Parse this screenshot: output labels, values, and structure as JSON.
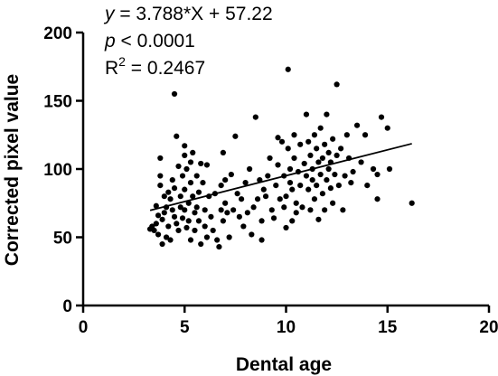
{
  "chart_data": {
    "type": "scatter",
    "xlabel": "Dental age",
    "ylabel": "Corrected pixel value",
    "xlim": [
      0,
      20
    ],
    "ylim": [
      0,
      200
    ],
    "x_ticks": [
      "0",
      "5",
      "10",
      "15",
      "20"
    ],
    "y_ticks": [
      "0",
      "50",
      "100",
      "150",
      "200"
    ],
    "grid": false,
    "colors": {
      "points": "#000000",
      "axes": "#000000",
      "fit_line": "#000000"
    },
    "fit": {
      "slope": 3.788,
      "intercept": 57.22,
      "x_range": [
        3.3,
        16.2
      ]
    },
    "annotations": {
      "line1_var": "y",
      "line1_rest": " =  3.788*X + 57.22",
      "line2_var": "p",
      "line2_rest": " < 0.0001",
      "line3_base": "R",
      "line3_sup": "2",
      "line3_rest": " = 0.2467"
    },
    "points": [
      [
        3.3,
        56
      ],
      [
        3.4,
        58
      ],
      [
        3.5,
        55
      ],
      [
        3.6,
        60
      ],
      [
        3.6,
        73
      ],
      [
        3.7,
        66
      ],
      [
        3.7,
        52
      ],
      [
        3.8,
        108
      ],
      [
        3.8,
        95
      ],
      [
        3.8,
        88
      ],
      [
        3.9,
        63
      ],
      [
        3.9,
        45
      ],
      [
        4.0,
        80
      ],
      [
        4.0,
        68
      ],
      [
        4.1,
        50
      ],
      [
        4.1,
        72
      ],
      [
        4.2,
        83
      ],
      [
        4.2,
        58
      ],
      [
        4.3,
        48
      ],
      [
        4.3,
        78
      ],
      [
        4.4,
        70
      ],
      [
        4.4,
        92
      ],
      [
        4.5,
        86
      ],
      [
        4.5,
        155
      ],
      [
        4.5,
        65
      ],
      [
        4.6,
        124
      ],
      [
        4.6,
        60
      ],
      [
        4.7,
        102
      ],
      [
        4.7,
        55
      ],
      [
        4.8,
        80
      ],
      [
        4.8,
        72
      ],
      [
        4.9,
        95
      ],
      [
        4.9,
        64
      ],
      [
        5.0,
        117
      ],
      [
        5.0,
        110
      ],
      [
        5.0,
        85
      ],
      [
        5.0,
        70
      ],
      [
        5.1,
        100
      ],
      [
        5.1,
        57
      ],
      [
        5.2,
        75
      ],
      [
        5.2,
        62
      ],
      [
        5.3,
        105
      ],
      [
        5.3,
        90
      ],
      [
        5.3,
        48
      ],
      [
        5.4,
        112
      ],
      [
        5.4,
        80
      ],
      [
        5.5,
        68
      ],
      [
        5.5,
        55
      ],
      [
        5.6,
        95
      ],
      [
        5.6,
        72
      ],
      [
        5.7,
        83
      ],
      [
        5.7,
        62
      ],
      [
        5.8,
        104
      ],
      [
        5.8,
        45
      ],
      [
        5.9,
        90
      ],
      [
        6.0,
        70
      ],
      [
        6.0,
        58
      ],
      [
        6.1,
        103
      ],
      [
        6.1,
        50
      ],
      [
        6.2,
        80
      ],
      [
        6.3,
        65
      ],
      [
        6.4,
        55
      ],
      [
        6.5,
        82
      ],
      [
        6.6,
        48
      ],
      [
        6.7,
        43
      ],
      [
        6.8,
        70
      ],
      [
        6.8,
        88
      ],
      [
        6.9,
        112
      ],
      [
        6.9,
        62
      ],
      [
        7.0,
        92
      ],
      [
        7.0,
        75
      ],
      [
        7.1,
        68
      ],
      [
        7.2,
        50
      ],
      [
        7.3,
        96
      ],
      [
        7.4,
        70
      ],
      [
        7.5,
        124
      ],
      [
        7.6,
        82
      ],
      [
        7.7,
        65
      ],
      [
        7.8,
        78
      ],
      [
        7.9,
        58
      ],
      [
        8.0,
        90
      ],
      [
        8.1,
        68
      ],
      [
        8.2,
        100
      ],
      [
        8.3,
        52
      ],
      [
        8.4,
        72
      ],
      [
        8.5,
        138
      ],
      [
        8.6,
        78
      ],
      [
        8.7,
        92
      ],
      [
        8.8,
        48
      ],
      [
        8.8,
        62
      ],
      [
        8.9,
        85
      ],
      [
        9.0,
        80
      ],
      [
        9.1,
        95
      ],
      [
        9.2,
        108
      ],
      [
        9.3,
        70
      ],
      [
        9.4,
        64
      ],
      [
        9.5,
        88
      ],
      [
        9.6,
        123
      ],
      [
        9.6,
        103
      ],
      [
        9.7,
        78
      ],
      [
        9.8,
        120
      ],
      [
        9.9,
        95
      ],
      [
        9.9,
        72
      ],
      [
        10.0,
        80
      ],
      [
        10.0,
        57
      ],
      [
        10.1,
        173
      ],
      [
        10.1,
        115
      ],
      [
        10.2,
        100
      ],
      [
        10.2,
        90
      ],
      [
        10.3,
        85
      ],
      [
        10.3,
        62
      ],
      [
        10.4,
        125
      ],
      [
        10.4,
        108
      ],
      [
        10.5,
        75
      ],
      [
        10.5,
        68
      ],
      [
        10.6,
        98
      ],
      [
        10.7,
        118
      ],
      [
        10.7,
        88
      ],
      [
        10.8,
        72
      ],
      [
        10.9,
        104
      ],
      [
        11.0,
        140
      ],
      [
        11.0,
        95
      ],
      [
        11.1,
        120
      ],
      [
        11.1,
        85
      ],
      [
        11.2,
        110
      ],
      [
        11.2,
        70
      ],
      [
        11.3,
        100
      ],
      [
        11.3,
        92
      ],
      [
        11.4,
        125
      ],
      [
        11.4,
        78
      ],
      [
        11.5,
        115
      ],
      [
        11.5,
        88
      ],
      [
        11.6,
        105
      ],
      [
        11.6,
        63
      ],
      [
        11.7,
        130
      ],
      [
        11.7,
        96
      ],
      [
        11.8,
        108
      ],
      [
        11.8,
        82
      ],
      [
        11.9,
        118
      ],
      [
        11.9,
        70
      ],
      [
        12.0,
        140
      ],
      [
        12.0,
        92
      ],
      [
        12.1,
        112
      ],
      [
        12.1,
        100
      ],
      [
        12.2,
        105
      ],
      [
        12.2,
        86
      ],
      [
        12.3,
        122
      ],
      [
        12.3,
        75
      ],
      [
        12.4,
        96
      ],
      [
        12.5,
        162
      ],
      [
        12.5,
        110
      ],
      [
        12.6,
        88
      ],
      [
        12.7,
        115
      ],
      [
        12.8,
        70
      ],
      [
        12.9,
        95
      ],
      [
        13.0,
        125
      ],
      [
        13.1,
        108
      ],
      [
        13.2,
        90
      ],
      [
        13.3,
        98
      ],
      [
        13.5,
        132
      ],
      [
        13.7,
        105
      ],
      [
        13.9,
        125
      ],
      [
        14.0,
        88
      ],
      [
        14.3,
        100
      ],
      [
        14.5,
        96
      ],
      [
        14.5,
        78
      ],
      [
        14.7,
        138
      ],
      [
        15.0,
        130
      ],
      [
        15.1,
        100
      ],
      [
        16.2,
        75
      ]
    ]
  }
}
